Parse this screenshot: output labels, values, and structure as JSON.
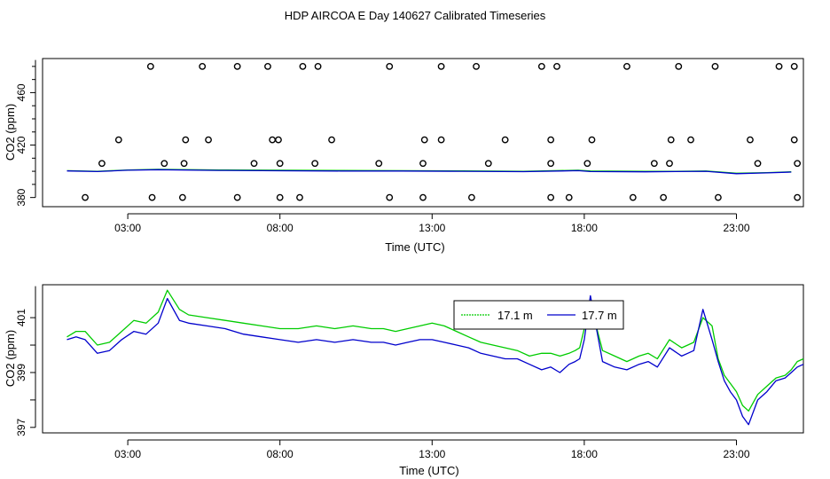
{
  "title": "HDP AIRCOA E  Day 140627  Calibrated Timeseries",
  "colors": {
    "green": "#00cc00",
    "blue": "#0000cc",
    "axis": "#000000"
  },
  "chart_data": [
    {
      "type": "scatter",
      "xlabel": "Time (UTC)",
      "ylabel": "CO2 (ppm)",
      "x_unit": "hours UTC",
      "xlim": [
        0.2,
        25.2
      ],
      "ylim": [
        373,
        486
      ],
      "xticks": [
        3,
        8,
        13,
        18,
        23
      ],
      "xtick_labels": [
        "03:00",
        "08:00",
        "13:00",
        "18:00",
        "23:00"
      ],
      "yticks": [
        380,
        420,
        460
      ],
      "ytick_labels": [
        "380",
        "420",
        "460"
      ],
      "flagged_points": [
        {
          "x": 1.6,
          "y": 380
        },
        {
          "x": 3.8,
          "y": 380
        },
        {
          "x": 4.8,
          "y": 380
        },
        {
          "x": 6.6,
          "y": 380
        },
        {
          "x": 8.0,
          "y": 380
        },
        {
          "x": 8.65,
          "y": 380
        },
        {
          "x": 11.6,
          "y": 380
        },
        {
          "x": 12.7,
          "y": 380
        },
        {
          "x": 14.3,
          "y": 380
        },
        {
          "x": 16.9,
          "y": 380
        },
        {
          "x": 17.5,
          "y": 380
        },
        {
          "x": 19.6,
          "y": 380
        },
        {
          "x": 20.6,
          "y": 380
        },
        {
          "x": 22.4,
          "y": 380
        },
        {
          "x": 25.0,
          "y": 380
        },
        {
          "x": 2.15,
          "y": 406
        },
        {
          "x": 4.2,
          "y": 406
        },
        {
          "x": 4.85,
          "y": 406
        },
        {
          "x": 7.15,
          "y": 406
        },
        {
          "x": 8.0,
          "y": 406
        },
        {
          "x": 9.15,
          "y": 406
        },
        {
          "x": 11.25,
          "y": 406
        },
        {
          "x": 12.7,
          "y": 406
        },
        {
          "x": 14.85,
          "y": 406
        },
        {
          "x": 16.9,
          "y": 406
        },
        {
          "x": 18.1,
          "y": 406
        },
        {
          "x": 20.3,
          "y": 406
        },
        {
          "x": 20.8,
          "y": 406
        },
        {
          "x": 23.7,
          "y": 406
        },
        {
          "x": 25.0,
          "y": 406
        },
        {
          "x": 2.7,
          "y": 424
        },
        {
          "x": 4.9,
          "y": 424
        },
        {
          "x": 5.65,
          "y": 424
        },
        {
          "x": 7.75,
          "y": 424
        },
        {
          "x": 7.95,
          "y": 424
        },
        {
          "x": 9.7,
          "y": 424
        },
        {
          "x": 12.75,
          "y": 424
        },
        {
          "x": 13.3,
          "y": 424
        },
        {
          "x": 15.4,
          "y": 424
        },
        {
          "x": 16.9,
          "y": 424
        },
        {
          "x": 18.25,
          "y": 424
        },
        {
          "x": 20.85,
          "y": 424
        },
        {
          "x": 21.5,
          "y": 424
        },
        {
          "x": 23.45,
          "y": 424
        },
        {
          "x": 24.9,
          "y": 424
        },
        {
          "x": 3.75,
          "y": 480
        },
        {
          "x": 5.45,
          "y": 480
        },
        {
          "x": 6.6,
          "y": 480
        },
        {
          "x": 7.6,
          "y": 480
        },
        {
          "x": 8.75,
          "y": 480
        },
        {
          "x": 9.25,
          "y": 480
        },
        {
          "x": 11.6,
          "y": 480
        },
        {
          "x": 13.3,
          "y": 480
        },
        {
          "x": 14.45,
          "y": 480
        },
        {
          "x": 16.6,
          "y": 480
        },
        {
          "x": 17.1,
          "y": 480
        },
        {
          "x": 19.4,
          "y": 480
        },
        {
          "x": 21.1,
          "y": 480
        },
        {
          "x": 22.3,
          "y": 480
        },
        {
          "x": 24.4,
          "y": 480
        },
        {
          "x": 24.9,
          "y": 480
        }
      ],
      "series": [
        {
          "name": "17.1 m",
          "color": "#00cc00",
          "x": [
            1.0,
            2.0,
            3.0,
            4.0,
            6.0,
            8.0,
            10.0,
            12.0,
            14.0,
            16.0,
            17.8,
            18.2,
            20.0,
            21.0,
            22.0,
            23.0,
            24.0,
            24.8
          ],
          "values": [
            400.5,
            400.0,
            401.0,
            401.5,
            401.0,
            400.8,
            400.6,
            400.5,
            400.3,
            400.0,
            400.8,
            400.2,
            400.0,
            400.0,
            400.2,
            398.5,
            399.0,
            399.6
          ]
        },
        {
          "name": "17.7 m",
          "color": "#0000cc",
          "x": [
            1.0,
            2.0,
            3.0,
            4.0,
            6.0,
            8.0,
            10.0,
            12.0,
            14.0,
            16.0,
            17.8,
            18.2,
            20.0,
            21.0,
            22.0,
            23.0,
            24.0,
            24.8
          ],
          "values": [
            400.3,
            399.8,
            400.8,
            401.2,
            400.7,
            400.4,
            400.2,
            400.2,
            400.0,
            399.7,
            400.5,
            399.8,
            399.6,
            399.8,
            400.0,
            398.2,
            398.8,
            399.4
          ]
        }
      ]
    },
    {
      "type": "line",
      "xlabel": "Time (UTC)",
      "ylabel": "CO2 (ppm)",
      "x_unit": "hours UTC",
      "xlim": [
        0.2,
        25.2
      ],
      "ylim": [
        396.8,
        402.2
      ],
      "xticks": [
        3,
        8,
        13,
        18,
        23
      ],
      "xtick_labels": [
        "03:00",
        "08:00",
        "13:00",
        "18:00",
        "23:00"
      ],
      "yticks": [
        397,
        399,
        401
      ],
      "ytick_labels": [
        "397",
        "399",
        "401"
      ],
      "legend": {
        "position": "top-center-right",
        "labels": [
          "17.1 m",
          "17.7 m"
        ]
      },
      "series": [
        {
          "name": "17.1 m",
          "color": "#00cc00",
          "x": [
            1.0,
            1.3,
            1.6,
            2.0,
            2.4,
            2.8,
            3.2,
            3.6,
            4.0,
            4.3,
            4.7,
            5.0,
            5.6,
            6.2,
            6.8,
            7.4,
            8.0,
            8.6,
            9.2,
            9.8,
            10.4,
            11.0,
            11.4,
            11.8,
            12.2,
            12.6,
            13.0,
            13.4,
            13.8,
            14.2,
            14.6,
            15.0,
            15.4,
            15.8,
            16.2,
            16.6,
            16.9,
            17.2,
            17.5,
            17.7,
            17.85,
            18.0,
            18.2,
            18.6,
            19.0,
            19.4,
            19.8,
            20.1,
            20.4,
            20.8,
            21.2,
            21.4,
            21.6,
            21.9,
            22.2,
            22.4,
            22.6,
            22.8,
            23.0,
            23.2,
            23.4,
            23.7,
            24.0,
            24.3,
            24.6,
            24.8,
            25.0,
            25.2
          ],
          "values": [
            400.3,
            400.5,
            400.5,
            400.0,
            400.1,
            400.5,
            400.9,
            400.8,
            401.2,
            402.0,
            401.3,
            401.1,
            401.0,
            400.9,
            400.8,
            400.7,
            400.6,
            400.6,
            400.7,
            400.6,
            400.7,
            400.6,
            400.6,
            400.5,
            400.6,
            400.7,
            400.8,
            400.7,
            400.5,
            400.3,
            400.1,
            400.0,
            399.9,
            399.8,
            399.6,
            399.7,
            399.7,
            399.6,
            399.7,
            399.8,
            399.9,
            400.6,
            401.5,
            399.8,
            399.6,
            399.4,
            399.6,
            399.7,
            399.5,
            400.2,
            399.9,
            400.0,
            400.1,
            401.0,
            400.7,
            399.5,
            398.9,
            398.6,
            398.3,
            397.8,
            397.6,
            398.2,
            398.5,
            398.8,
            398.9,
            399.1,
            399.4,
            399.5
          ]
        },
        {
          "name": "17.7 m",
          "color": "#0000cc",
          "x": [
            1.0,
            1.3,
            1.6,
            2.0,
            2.4,
            2.8,
            3.2,
            3.6,
            4.0,
            4.3,
            4.7,
            5.0,
            5.6,
            6.2,
            6.8,
            7.4,
            8.0,
            8.6,
            9.2,
            9.8,
            10.4,
            11.0,
            11.4,
            11.8,
            12.2,
            12.6,
            13.0,
            13.4,
            13.8,
            14.2,
            14.6,
            15.0,
            15.4,
            15.8,
            16.2,
            16.6,
            16.9,
            17.2,
            17.5,
            17.7,
            17.85,
            18.0,
            18.2,
            18.6,
            19.0,
            19.4,
            19.8,
            20.1,
            20.4,
            20.8,
            21.2,
            21.4,
            21.6,
            21.9,
            22.2,
            22.4,
            22.6,
            22.8,
            23.0,
            23.2,
            23.4,
            23.7,
            24.0,
            24.3,
            24.6,
            24.8,
            25.0,
            25.2
          ],
          "values": [
            400.2,
            400.3,
            400.2,
            399.7,
            399.8,
            400.2,
            400.5,
            400.4,
            400.8,
            401.7,
            400.9,
            400.8,
            400.7,
            400.6,
            400.4,
            400.3,
            400.2,
            400.1,
            400.2,
            400.1,
            400.2,
            400.1,
            400.1,
            400.0,
            400.1,
            400.2,
            400.2,
            400.1,
            400.0,
            399.9,
            399.7,
            399.6,
            399.5,
            399.5,
            399.3,
            399.1,
            399.2,
            399.0,
            399.3,
            399.4,
            399.5,
            400.2,
            401.8,
            399.4,
            399.2,
            399.1,
            399.3,
            399.4,
            399.2,
            399.9,
            399.6,
            399.7,
            399.8,
            401.3,
            400.2,
            399.4,
            398.7,
            398.3,
            398.0,
            397.4,
            397.1,
            398.0,
            398.3,
            398.7,
            398.8,
            399.0,
            399.2,
            399.3
          ]
        }
      ]
    }
  ]
}
